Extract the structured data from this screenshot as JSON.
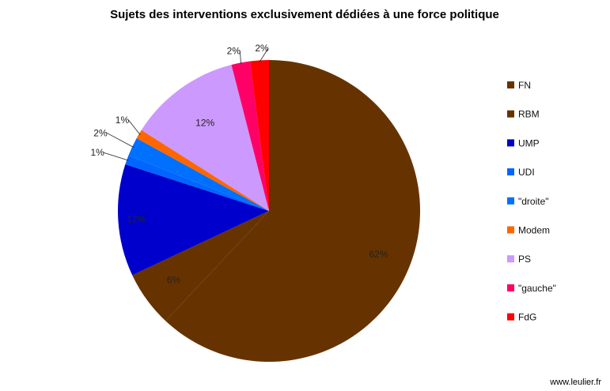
{
  "chart_data": {
    "type": "pie",
    "title": "Sujets des interventions exclusivement dédiées à une force politique",
    "categories": [
      "FN",
      "RBM",
      "UMP",
      "UDI",
      "\"droite\"",
      "Modem",
      "PS",
      "\"gauche\"",
      "FdG"
    ],
    "values": [
      62,
      6,
      12,
      1,
      2,
      1,
      12,
      2,
      2
    ],
    "value_labels": [
      "62%",
      "6%",
      "12%",
      "1%",
      "2%",
      "1%",
      "12%",
      "2%",
      "2%"
    ],
    "legend_position": "right",
    "start": "12 o'clock, clockwise"
  },
  "colors": {
    "FN": "#663300",
    "RBM": "#663300",
    "UMP": "#0000cc",
    "UDI": "#0066ff",
    "\"droite\"": "#0070ff",
    "Modem": "#ff6600",
    "PS": "#cc99ff",
    "\"gauche\"": "#ff0066",
    "FdG": "#ff0000"
  },
  "credit": "www.leulier.fr"
}
